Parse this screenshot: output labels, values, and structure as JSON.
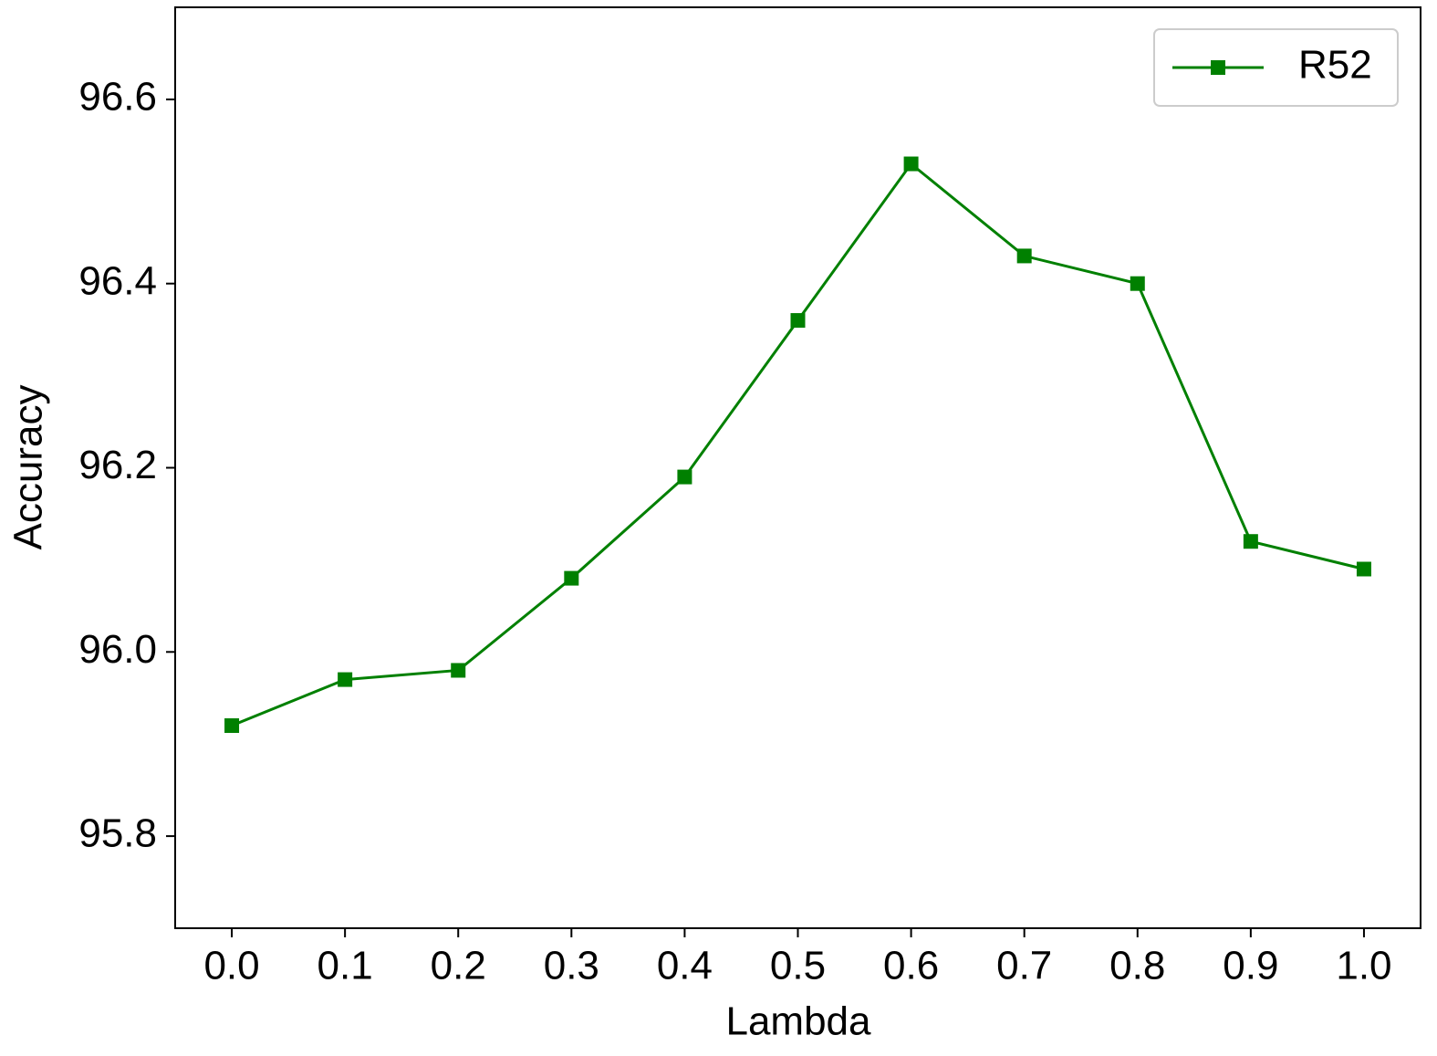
{
  "chart_data": {
    "type": "line",
    "xlabel": "Lambda",
    "ylabel": "Accuracy",
    "x": [
      0.0,
      0.1,
      0.2,
      0.3,
      0.4,
      0.5,
      0.6,
      0.7,
      0.8,
      0.9,
      1.0
    ],
    "series": [
      {
        "name": "R52",
        "color": "#008000",
        "values": [
          95.92,
          95.97,
          95.98,
          96.08,
          96.19,
          96.36,
          96.53,
          96.43,
          96.4,
          96.12,
          96.09
        ]
      }
    ],
    "xlim": [
      -0.05,
      1.05
    ],
    "xticks": [
      {
        "value": 0,
        "label": "0.0"
      },
      0.1,
      0.2,
      0.3,
      0.4,
      0.5,
      0.6,
      0.7,
      0.8,
      0.9,
      {
        "value": 1,
        "label": "1.0"
      }
    ],
    "ylim": [
      95.7,
      96.7
    ],
    "yticks": [
      95.8,
      {
        "value": 96,
        "label": "96.0"
      },
      96.2,
      96.4,
      96.6
    ],
    "grid": false,
    "legend": "upper right",
    "marker": "square"
  }
}
